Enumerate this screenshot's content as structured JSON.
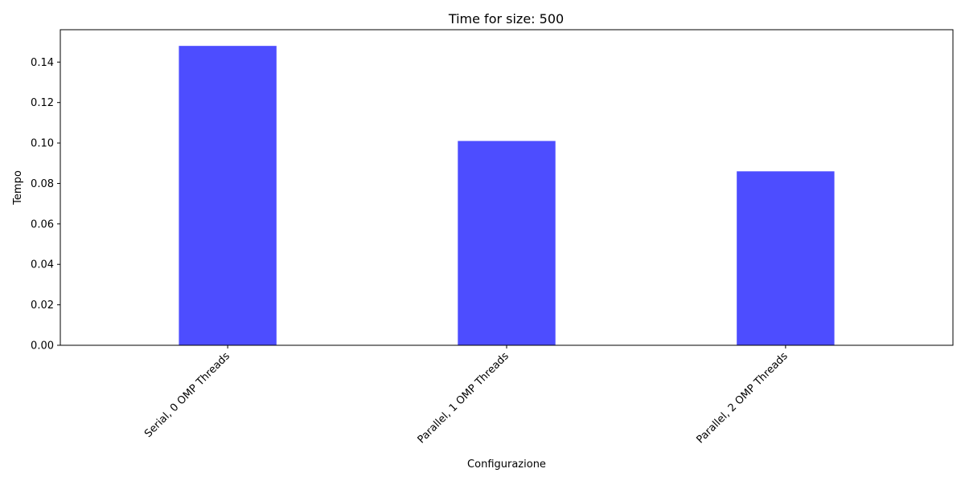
{
  "chart_data": {
    "type": "bar",
    "title": "Time for size: 500",
    "xlabel": "Configurazione",
    "ylabel": "Tempo",
    "categories": [
      "Serial, 0 OMP Threads",
      "Parallel, 1 OMP Threads",
      "Parallel, 2 OMP Threads"
    ],
    "values": [
      0.148,
      0.101,
      0.086
    ],
    "ylim": [
      0,
      0.156
    ],
    "yticks": [
      "0.00",
      "0.02",
      "0.04",
      "0.06",
      "0.08",
      "0.10",
      "0.12",
      "0.14"
    ],
    "bar_color": "#4d4dff",
    "grid": false,
    "legend": "none"
  }
}
